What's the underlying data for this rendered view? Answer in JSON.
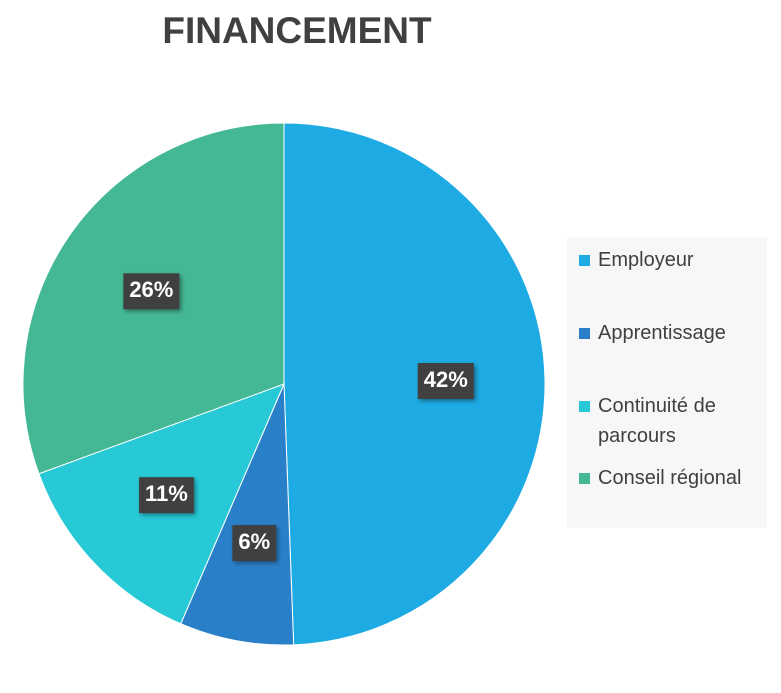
{
  "chart_data": {
    "type": "pie",
    "title": "FINANCEMENT",
    "categories": [
      "Employeur",
      "Apprentissage",
      "Continuité de parcours",
      "Conseil régional"
    ],
    "values": [
      42,
      6,
      11,
      26
    ],
    "value_labels": [
      "42%",
      "6%",
      "11%",
      "26%"
    ],
    "colors": [
      "#1eabe3",
      "#2a80c8",
      "#27c9d7",
      "#44b895"
    ],
    "legend": "right"
  }
}
